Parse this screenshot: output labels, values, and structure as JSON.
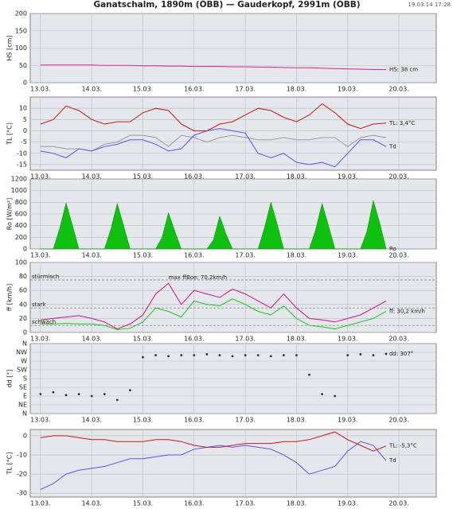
{
  "title": "Ganatschalm, 1890m (ÖBB) — Gauderkopf, 2991m (ÖBB)",
  "timestamp": "19.03.14 17:28",
  "chart_data": [
    {
      "type": "line",
      "y_label": "HS [cm]",
      "color": "#e0208c",
      "x": [
        13,
        13.25,
        13.5,
        13.75,
        14,
        14.25,
        14.5,
        14.75,
        15,
        15.25,
        15.5,
        15.75,
        16,
        16.25,
        16.5,
        16.75,
        17,
        17.25,
        17.5,
        17.75,
        18,
        18.25,
        18.5,
        18.75,
        19,
        19.25,
        19.5,
        19.75
      ],
      "series": [
        {
          "name": "HS: 38 cm",
          "color": "#e0208c",
          "values": [
            51,
            51,
            51,
            51,
            51,
            50,
            50,
            50,
            49,
            49,
            48,
            48,
            47,
            47,
            47,
            46,
            46,
            45,
            45,
            44,
            43,
            43,
            42,
            41,
            40,
            39,
            38,
            38
          ]
        }
      ],
      "xlim": [
        12.8,
        20.73
      ],
      "ylim": [
        0,
        200
      ],
      "yticks": [
        0,
        50,
        100,
        150,
        200
      ],
      "grid": true,
      "xticks": [
        {
          "value": 13,
          "label": "13.03."
        },
        {
          "value": 14,
          "label": "14.03."
        },
        {
          "value": 15,
          "label": "15.03."
        },
        {
          "value": 16,
          "label": "16.03."
        },
        {
          "value": 17,
          "label": "17.03."
        },
        {
          "value": 18,
          "label": "18.03."
        },
        {
          "value": 19,
          "label": "19.03."
        },
        {
          "value": 20,
          "label": "20.03."
        }
      ]
    },
    {
      "type": "line",
      "y_label": "TL [°C]",
      "color": "#d01818",
      "x": [
        13,
        13.25,
        13.5,
        13.75,
        14,
        14.25,
        14.5,
        14.75,
        15,
        15.25,
        15.5,
        15.75,
        16,
        16.25,
        16.5,
        16.75,
        17,
        17.25,
        17.5,
        17.75,
        18,
        18.25,
        18.5,
        18.75,
        19,
        19.25,
        19.5,
        19.75
      ],
      "series": [
        {
          "color": "#999999",
          "values": [
            -7,
            -7,
            -8,
            -8,
            -9,
            -6,
            -5,
            -2,
            -2,
            -3,
            -7,
            -2,
            -3,
            -5,
            -3,
            -2,
            -3,
            -4,
            -4,
            -3,
            -4,
            -4,
            -3,
            -3,
            -7,
            -3,
            -2,
            -3
          ]
        },
        {
          "name": "Td",
          "color": "#5555ee",
          "values": [
            -9,
            -10,
            -12,
            -8,
            -9,
            -7,
            -6,
            -4,
            -4,
            -6,
            -9,
            -8,
            -2,
            0,
            1,
            0,
            -1,
            -10,
            -12,
            -10,
            -14,
            -15,
            -14,
            -16,
            -10,
            -4,
            -4,
            -7
          ]
        },
        {
          "name": "TL: 3,4°C",
          "color": "#c81818",
          "values": [
            3,
            5,
            11,
            9,
            5,
            3,
            4,
            4,
            8,
            10,
            9,
            3,
            0,
            0,
            3,
            4,
            7,
            10,
            9,
            6,
            4,
            7,
            12,
            8,
            3,
            1,
            3,
            3.4
          ]
        }
      ],
      "xlim": [
        12.8,
        20.73
      ],
      "ylim": [
        -17.5,
        15
      ],
      "yticks": [
        -15,
        -10,
        -5,
        0,
        5,
        10
      ],
      "grid": true,
      "xticks": [
        {
          "value": 13,
          "label": "13.03."
        },
        {
          "value": 14,
          "label": "14.03."
        },
        {
          "value": 15,
          "label": "15.03."
        },
        {
          "value": 16,
          "label": "16.03."
        },
        {
          "value": 17,
          "label": "17.03."
        },
        {
          "value": 18,
          "label": "18.03."
        },
        {
          "value": 19,
          "label": "19.03."
        },
        {
          "value": 20,
          "label": "20.03."
        }
      ]
    },
    {
      "type": "area",
      "y_label": "Ro [W/m²]",
      "color": "#18b818",
      "x": [
        13,
        13.125,
        13.25,
        13.375,
        13.5,
        13.625,
        13.75,
        13.875,
        14,
        14.125,
        14.25,
        14.375,
        14.5,
        14.625,
        14.75,
        14.875,
        15,
        15.125,
        15.25,
        15.375,
        15.5,
        15.625,
        15.75,
        15.875,
        16,
        16.125,
        16.25,
        16.375,
        16.5,
        16.625,
        16.75,
        16.875,
        17,
        17.125,
        17.25,
        17.375,
        17.5,
        17.625,
        17.75,
        17.875,
        18,
        18.125,
        18.25,
        18.375,
        18.5,
        18.625,
        18.75,
        18.875,
        19,
        19.125,
        19.25,
        19.375,
        19.5,
        19.625,
        19.75
      ],
      "series": [
        {
          "name": "Ro",
          "color": "#10c010",
          "values": [
            0,
            0,
            0,
            350,
            790,
            400,
            0,
            0,
            0,
            0,
            0,
            340,
            780,
            390,
            0,
            0,
            0,
            0,
            0,
            200,
            620,
            300,
            0,
            0,
            0,
            0,
            0,
            150,
            560,
            250,
            0,
            0,
            0,
            0,
            0,
            360,
            800,
            420,
            0,
            0,
            0,
            0,
            0,
            330,
            780,
            400,
            0,
            0,
            0,
            0,
            0,
            300,
            830,
            450,
            0
          ]
        }
      ],
      "xlim": [
        12.8,
        20.73
      ],
      "ylim": [
        0,
        1200
      ],
      "yticks": [
        0,
        200,
        400,
        600,
        800,
        1000,
        1200
      ],
      "grid": true,
      "xticks": [
        {
          "value": 13,
          "label": "13.03."
        },
        {
          "value": 14,
          "label": "14.03."
        },
        {
          "value": 15,
          "label": "15.03."
        },
        {
          "value": 16,
          "label": "16.03."
        },
        {
          "value": 17,
          "label": "17.03."
        },
        {
          "value": 18,
          "label": "18.03."
        },
        {
          "value": 19,
          "label": "19.03."
        },
        {
          "value": 20,
          "label": "20.03."
        }
      ]
    },
    {
      "type": "line",
      "y_label": "ff [km/h]",
      "color": "#10a010",
      "x": [
        13,
        13.25,
        13.5,
        13.75,
        14,
        14.25,
        14.5,
        14.75,
        15,
        15.25,
        15.5,
        15.75,
        16,
        16.25,
        16.5,
        16.75,
        17,
        17.25,
        17.5,
        17.75,
        18,
        18.25,
        18.5,
        18.75,
        19,
        19.25,
        19.5,
        19.75
      ],
      "series": [
        {
          "name": "max ffBoe: 70,2km/h",
          "color": "#d01080",
          "values": [
            18,
            20,
            22,
            24,
            20,
            15,
            5,
            12,
            25,
            55,
            70.2,
            40,
            60,
            55,
            50,
            62,
            55,
            45,
            35,
            55,
            35,
            20,
            18,
            15,
            20,
            25,
            35,
            45
          ]
        },
        {
          "name": "ff: 30,2 km/h",
          "color": "#20c020",
          "values": [
            12,
            12,
            13,
            12,
            12,
            10,
            4,
            6,
            15,
            35,
            30,
            22,
            45,
            40,
            38,
            48,
            40,
            30,
            25,
            38,
            20,
            10,
            8,
            5,
            10,
            15,
            20,
            30.2
          ]
        }
      ],
      "reference_lines": [
        {
          "value": 75,
          "label": "stürmisch"
        },
        {
          "value": 35,
          "label": "stark"
        },
        {
          "value": 10,
          "label": "schwach"
        }
      ],
      "xlim": [
        12.8,
        20.73
      ],
      "ylim": [
        0,
        100
      ],
      "yticks": [
        0,
        20,
        40,
        60,
        80,
        100
      ],
      "grid": true,
      "xticks": [
        {
          "value": 13,
          "label": "13.03."
        },
        {
          "value": 14,
          "label": "14.03."
        },
        {
          "value": 15,
          "label": "15.03."
        },
        {
          "value": 16,
          "label": "16.03."
        },
        {
          "value": 17,
          "label": "17.03."
        },
        {
          "value": 18,
          "label": "18.03."
        },
        {
          "value": 19,
          "label": "19.03."
        },
        {
          "value": 20,
          "label": "20.03."
        }
      ]
    },
    {
      "type": "scatter",
      "y_label": "dd [°]",
      "color": "#1a3a6a",
      "x": [
        13,
        13.25,
        13.5,
        13.75,
        14,
        14.25,
        14.5,
        14.75,
        15,
        15.25,
        15.5,
        15.75,
        16,
        16.25,
        16.5,
        16.75,
        17,
        17.25,
        17.5,
        17.75,
        18,
        18.25,
        18.5,
        18.75,
        19,
        19.25,
        19.5,
        19.75
      ],
      "series": [
        {
          "name": "dd: 307°",
          "color": "#123c5a",
          "values": [
            100,
            110,
            95,
            100,
            90,
            100,
            70,
            120,
            290,
            300,
            295,
            300,
            300,
            305,
            300,
            295,
            300,
            300,
            295,
            300,
            300,
            200,
            100,
            90,
            300,
            305,
            300,
            307
          ]
        }
      ],
      "xlim": [
        12.8,
        20.73
      ],
      "ylim": [
        0,
        360
      ],
      "yticks": [
        {
          "value": 0,
          "label": "N"
        },
        {
          "value": 45,
          "label": "NE"
        },
        {
          "value": 90,
          "label": "E"
        },
        {
          "value": 135,
          "label": "SE"
        },
        {
          "value": 180,
          "label": "S"
        },
        {
          "value": 225,
          "label": "SW"
        },
        {
          "value": 270,
          "label": "W"
        },
        {
          "value": 315,
          "label": "NW"
        },
        {
          "value": 360,
          "label": "N"
        }
      ],
      "grid": true,
      "xticks": [
        {
          "value": 13,
          "label": "13.03."
        },
        {
          "value": 14,
          "label": "14.03."
        },
        {
          "value": 15,
          "label": "15.03."
        },
        {
          "value": 16,
          "label": "16.03."
        },
        {
          "value": 17,
          "label": "17.03."
        },
        {
          "value": 18,
          "label": "18.03."
        },
        {
          "value": 19,
          "label": "19.03."
        },
        {
          "value": 20,
          "label": "20.03."
        }
      ]
    },
    {
      "type": "line",
      "y_label": "TL [°C]",
      "color": "#d01818",
      "x": [
        13,
        13.25,
        13.5,
        13.75,
        14,
        14.25,
        14.5,
        14.75,
        15,
        15.25,
        15.5,
        15.75,
        16,
        16.25,
        16.5,
        16.75,
        17,
        17.25,
        17.5,
        17.75,
        18,
        18.25,
        18.5,
        18.75,
        19,
        19.25,
        19.5,
        19.75
      ],
      "series": [
        {
          "name": "Td",
          "color": "#5555ee",
          "values": [
            -28,
            -25,
            -20,
            -18,
            -17,
            -16,
            -14,
            -12,
            -12,
            -11,
            -10,
            -10,
            -7,
            -6,
            -5,
            -6,
            -5,
            -6,
            -7,
            -10,
            -14,
            -20,
            -18,
            -16,
            -8,
            -3,
            -5,
            -13
          ]
        },
        {
          "name": "TL: -5,3°C",
          "color": "#c81818",
          "values": [
            -1,
            0,
            0,
            -1,
            -2,
            -2,
            -3,
            -3,
            -3,
            -2,
            -2,
            -3,
            -5,
            -6,
            -6,
            -5,
            -4,
            -4,
            -4,
            -3,
            -3,
            -2,
            0,
            2,
            -2,
            -5,
            -8,
            -5.3
          ]
        }
      ],
      "xlim": [
        12.8,
        20.73
      ],
      "ylim": [
        -32,
        3.3
      ],
      "yticks": [
        -30,
        -20,
        -10,
        0
      ],
      "grid": true,
      "xticks": [
        {
          "value": 13,
          "label": "13.03."
        },
        {
          "value": 14,
          "label": "14.03."
        },
        {
          "value": 15,
          "label": "15.03."
        },
        {
          "value": 16,
          "label": "16.03."
        },
        {
          "value": 17,
          "label": "17.03."
        },
        {
          "value": 18,
          "label": "18.03."
        },
        {
          "value": 19,
          "label": "19.03."
        },
        {
          "value": 20,
          "label": "20.03."
        }
      ]
    }
  ]
}
